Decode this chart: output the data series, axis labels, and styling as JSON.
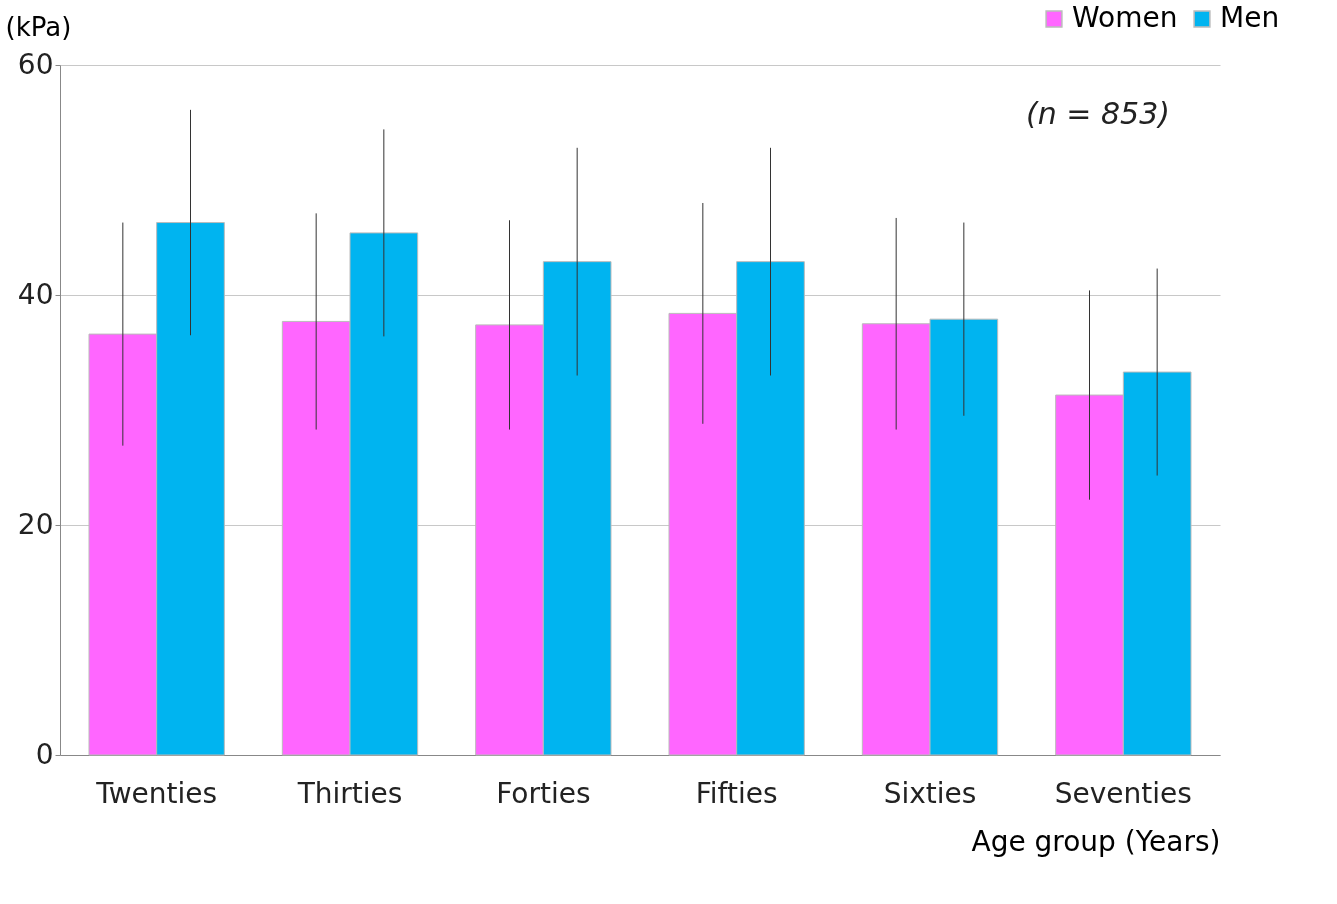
{
  "chart_data": {
    "type": "bar",
    "ylabel": "(kPa)",
    "xlabel": "Age group (Years)",
    "categories": [
      "Twenties",
      "Thirties",
      "Forties",
      "Fifties",
      "Sixties",
      "Seventies"
    ],
    "series": [
      {
        "name": "Women",
        "color": "#ff66ff",
        "values": [
          36.6,
          37.7,
          37.4,
          38.4,
          37.5,
          31.3
        ],
        "errors": [
          9.7,
          9.4,
          9.1,
          9.6,
          9.2,
          9.1
        ]
      },
      {
        "name": "Men",
        "color": "#00b4f0",
        "values": [
          46.3,
          45.4,
          42.9,
          42.9,
          37.9,
          33.3
        ],
        "errors": [
          9.8,
          9.0,
          9.9,
          9.9,
          8.4,
          9.0
        ]
      }
    ],
    "ylim": [
      0,
      60
    ],
    "yticks": [
      0,
      20,
      40,
      60
    ],
    "grid": "y",
    "legend": "top right",
    "annotations": [
      "(n = 853)"
    ]
  }
}
